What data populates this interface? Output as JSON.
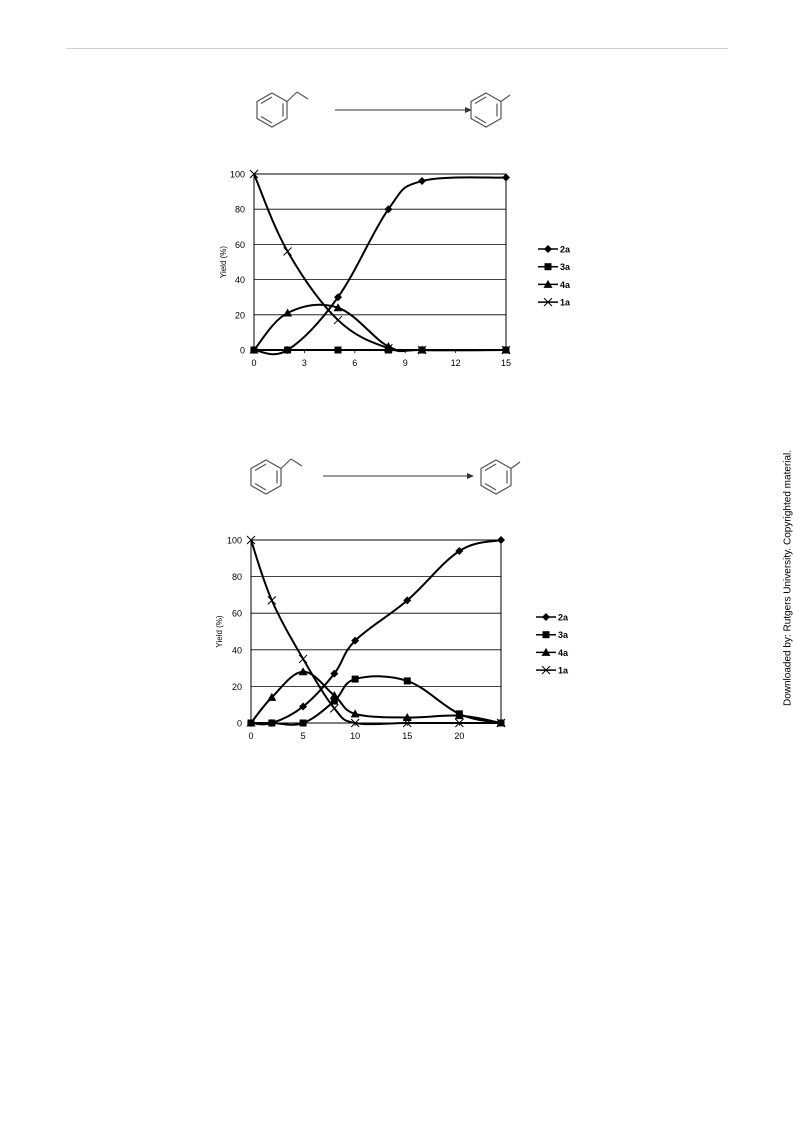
{
  "side_note": "Downloaded by: Rutgers University. Copyrighted material.",
  "chart_data": [
    {
      "type": "line",
      "title": "",
      "xlabel": "",
      "ylabel": "Yield (%)",
      "xlim": [
        0,
        15
      ],
      "ylim": [
        0,
        100
      ],
      "xticks": [
        "0",
        "3",
        "6",
        "9",
        "12",
        "15"
      ],
      "yticks": [
        "0",
        "20",
        "40",
        "60",
        "80",
        "100"
      ],
      "grid": "horizontal",
      "legend_position": "right",
      "series": [
        {
          "name": "2a",
          "marker": "diamond",
          "x": [
            0,
            2,
            5,
            8,
            10,
            15
          ],
          "y": [
            0,
            0,
            30,
            80,
            96,
            98
          ]
        },
        {
          "name": "3a",
          "marker": "square",
          "x": [
            0,
            2,
            5,
            8,
            10,
            15
          ],
          "y": [
            0,
            0,
            0,
            0,
            0,
            0
          ]
        },
        {
          "name": "4a",
          "marker": "triangle",
          "x": [
            0,
            2,
            5,
            8,
            10,
            15
          ],
          "y": [
            0,
            21,
            24,
            2,
            0,
            0
          ]
        },
        {
          "name": "1a",
          "marker": "cross",
          "x": [
            0,
            2,
            5,
            8,
            10,
            15
          ],
          "y": [
            100,
            56,
            17,
            1,
            0,
            0
          ]
        }
      ]
    },
    {
      "type": "line",
      "title": "",
      "xlabel": "",
      "ylabel": "Yield (%)",
      "xlim": [
        0,
        24
      ],
      "ylim": [
        0,
        100
      ],
      "xticks": [
        "0",
        "5",
        "10",
        "15",
        "20"
      ],
      "yticks": [
        "0",
        "20",
        "40",
        "60",
        "80",
        "100"
      ],
      "grid": "horizontal",
      "legend_position": "right",
      "series": [
        {
          "name": "2a",
          "marker": "diamond",
          "x": [
            0,
            2,
            5,
            8,
            10,
            15,
            20,
            24
          ],
          "y": [
            0,
            0,
            9,
            27,
            45,
            67,
            94,
            100
          ]
        },
        {
          "name": "3a",
          "marker": "square",
          "x": [
            0,
            2,
            5,
            8,
            10,
            15,
            20,
            24
          ],
          "y": [
            0,
            0,
            0,
            12,
            24,
            23,
            5,
            0
          ]
        },
        {
          "name": "4a",
          "marker": "triangle",
          "x": [
            0,
            2,
            5,
            8,
            10,
            15,
            20,
            24
          ],
          "y": [
            0,
            14,
            28,
            15,
            5,
            3,
            4,
            0
          ]
        },
        {
          "name": "1a",
          "marker": "cross",
          "x": [
            0,
            2,
            5,
            8,
            10,
            15,
            20,
            24
          ],
          "y": [
            100,
            67,
            35,
            8,
            0,
            0,
            0,
            0
          ]
        }
      ]
    }
  ]
}
